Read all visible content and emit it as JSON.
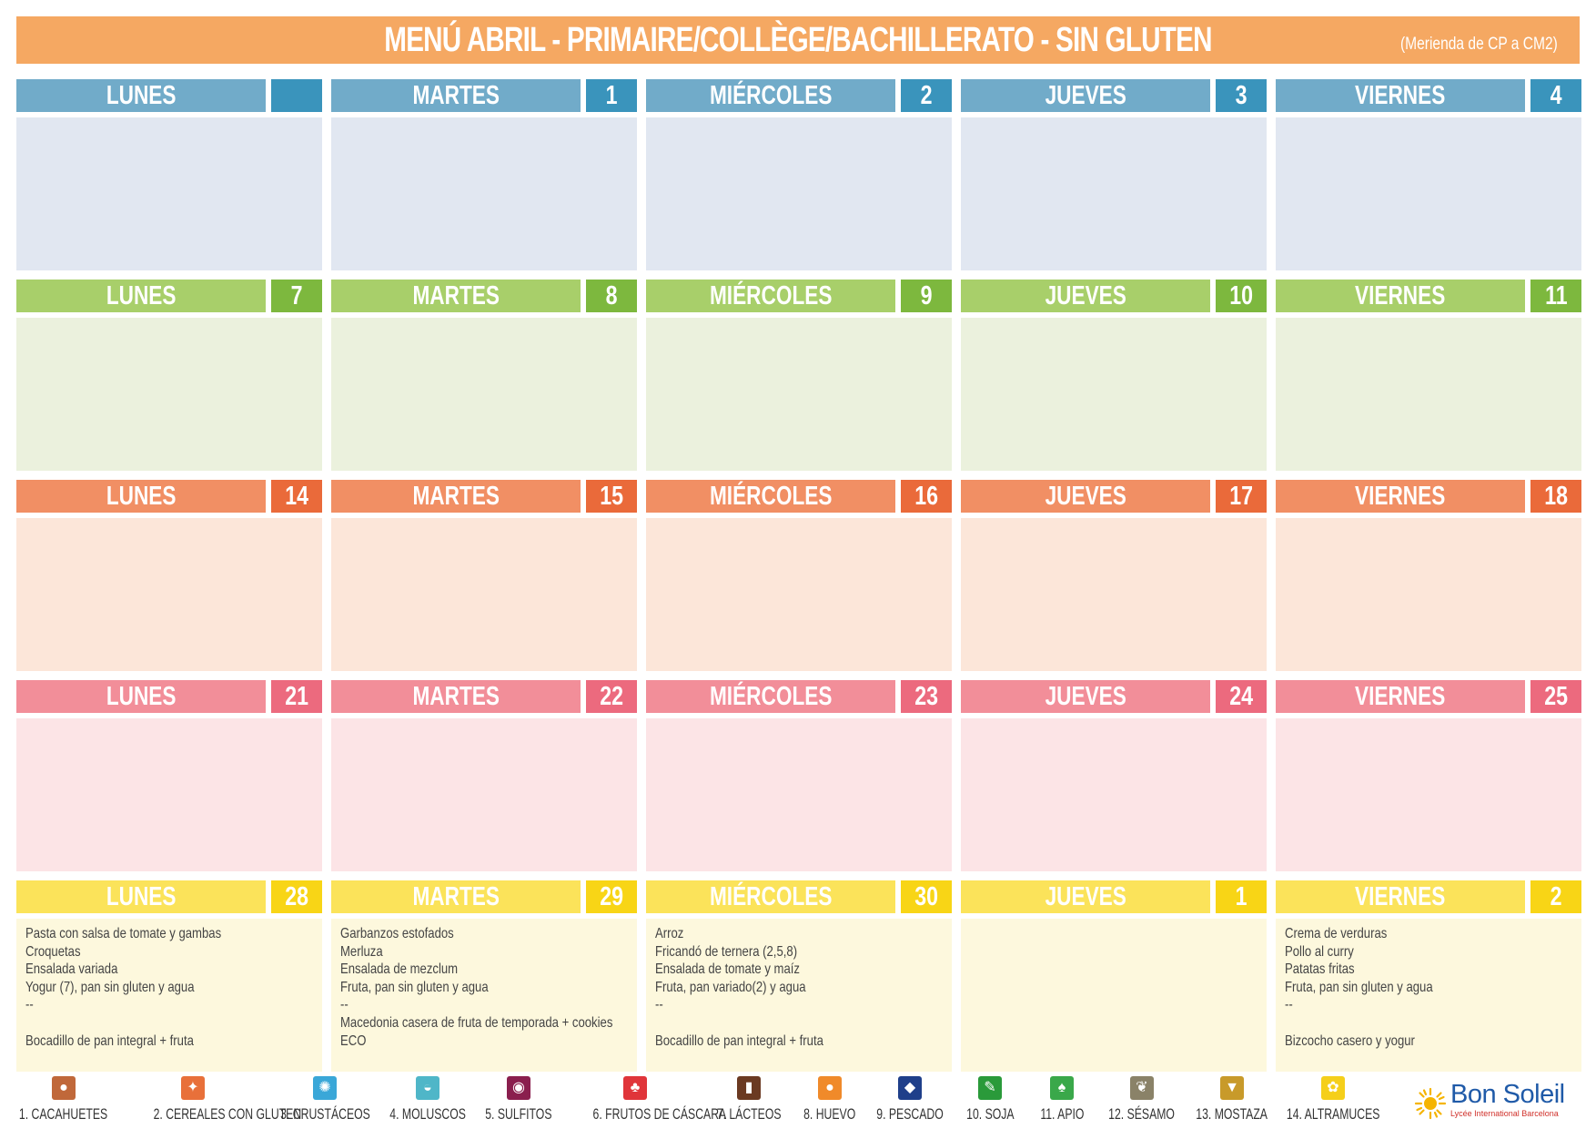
{
  "header": {
    "title": "MENÚ ABRIL - PRIMAIRE/COLLÈGE/BACHILLERATO - SIN GLUTEN",
    "note": "(Merienda de CP a CM2)"
  },
  "weeks": [
    {
      "theme": "blue",
      "days": [
        {
          "name": "LUNES",
          "num": "",
          "lines": []
        },
        {
          "name": "MARTES",
          "num": "1",
          "lines": []
        },
        {
          "name": "MIÉRCOLES",
          "num": "2",
          "lines": []
        },
        {
          "name": "JUEVES",
          "num": "3",
          "lines": []
        },
        {
          "name": "VIERNES",
          "num": "4",
          "lines": []
        }
      ]
    },
    {
      "theme": "green",
      "days": [
        {
          "name": "LUNES",
          "num": "7",
          "lines": []
        },
        {
          "name": "MARTES",
          "num": "8",
          "lines": []
        },
        {
          "name": "MIÉRCOLES",
          "num": "9",
          "lines": []
        },
        {
          "name": "JUEVES",
          "num": "10",
          "lines": []
        },
        {
          "name": "VIERNES",
          "num": "11",
          "lines": []
        }
      ]
    },
    {
      "theme": "orange",
      "days": [
        {
          "name": "LUNES",
          "num": "14",
          "lines": []
        },
        {
          "name": "MARTES",
          "num": "15",
          "lines": []
        },
        {
          "name": "MIÉRCOLES",
          "num": "16",
          "lines": []
        },
        {
          "name": "JUEVES",
          "num": "17",
          "lines": []
        },
        {
          "name": "VIERNES",
          "num": "18",
          "lines": []
        }
      ]
    },
    {
      "theme": "pink",
      "days": [
        {
          "name": "LUNES",
          "num": "21",
          "lines": []
        },
        {
          "name": "MARTES",
          "num": "22",
          "lines": []
        },
        {
          "name": "MIÉRCOLES",
          "num": "23",
          "lines": []
        },
        {
          "name": "JUEVES",
          "num": "24",
          "lines": []
        },
        {
          "name": "VIERNES",
          "num": "25",
          "lines": []
        }
      ]
    },
    {
      "theme": "yellow",
      "days": [
        {
          "name": "LUNES",
          "num": "28",
          "lines": [
            "Pasta con salsa de tomate y gambas",
            "Croquetas",
            "Ensalada variada",
            "Yogur (7), pan sin gluten y agua",
            "--",
            "",
            "Bocadillo de pan integral + fruta"
          ]
        },
        {
          "name": "MARTES",
          "num": "29",
          "lines": [
            "Garbanzos estofados",
            "Merluza",
            "Ensalada de mezclum",
            "Fruta, pan sin gluten y agua",
            "--",
            "Macedonia casera de fruta de temporada + cookies",
            "ECO"
          ]
        },
        {
          "name": "MIÉRCOLES",
          "num": "30",
          "lines": [
            "Arroz",
            "Fricandó de ternera (2,5,8)",
            "Ensalada de tomate y maíz",
            "Fruta, pan variado(2) y agua",
            "--",
            "",
            "Bocadillo de pan integral + fruta"
          ]
        },
        {
          "name": "JUEVES",
          "num": "1",
          "lines": []
        },
        {
          "name": "VIERNES",
          "num": "2",
          "lines": [
            "Crema de verduras",
            "Pollo al curry",
            "Patatas fritas",
            "Fruta, pan sin gluten y agua",
            "--",
            "",
            "Bizcocho casero y yogur"
          ]
        }
      ]
    }
  ],
  "allergens": [
    {
      "label": "1. CACAHUETES",
      "icon": "peanut-icon",
      "color": "#c0683a",
      "glyph": "●"
    },
    {
      "label": "2. CEREALES CON GLUTEN",
      "icon": "wheat-icon",
      "color": "#e8703a",
      "glyph": "✦"
    },
    {
      "label": "3. CRUSTÁCEOS",
      "icon": "crab-icon",
      "color": "#3aa7d8",
      "glyph": "✺"
    },
    {
      "label": "4. MOLUSCOS",
      "icon": "shell-icon",
      "color": "#4fb6c8",
      "glyph": "◒"
    },
    {
      "label": "5. SULFITOS",
      "icon": "sulfite-icon",
      "color": "#8a1f4e",
      "glyph": "◉"
    },
    {
      "label": "6. FRUTOS DE CÁSCARA",
      "icon": "nut-icon",
      "color": "#e0353a",
      "glyph": "♣"
    },
    {
      "label": "7. LÁCTEOS",
      "icon": "milk-icon",
      "color": "#6b3a22",
      "glyph": "▮"
    },
    {
      "label": "8. HUEVO",
      "icon": "egg-icon",
      "color": "#f08a2a",
      "glyph": "●"
    },
    {
      "label": "9. PESCADO",
      "icon": "fish-icon",
      "color": "#1f3f8a",
      "glyph": "◆"
    },
    {
      "label": "10. SOJA",
      "icon": "soy-icon",
      "color": "#2a9a3a",
      "glyph": "✎"
    },
    {
      "label": "11. APIO",
      "icon": "celery-icon",
      "color": "#3aa84a",
      "glyph": "♠"
    },
    {
      "label": "12. SÉSAMO",
      "icon": "sesame-icon",
      "color": "#8a8268",
      "glyph": "❦"
    },
    {
      "label": "13. MOSTAZA",
      "icon": "mustard-icon",
      "color": "#c89a2a",
      "glyph": "▼"
    },
    {
      "label": "14. ALTRAMUCES",
      "icon": "lupin-icon",
      "color": "#f5cf1a",
      "glyph": "✿"
    }
  ],
  "logo": {
    "brand": "Bon Soleil",
    "tagline": "Lycée International Barcelona"
  }
}
